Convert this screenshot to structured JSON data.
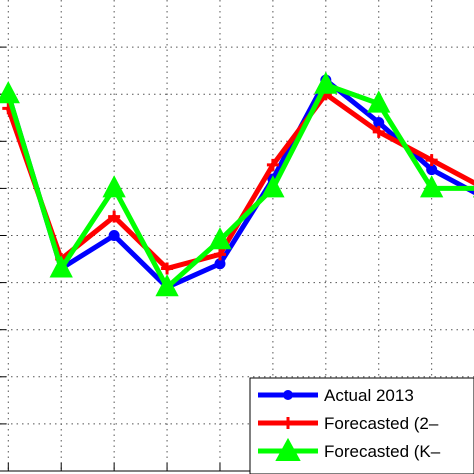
{
  "chart_data": {
    "type": "line",
    "x": [
      1,
      2,
      3,
      4,
      5,
      6,
      7,
      8,
      9,
      10
    ],
    "xlim": [
      0.9,
      9.8
    ],
    "ylim": [
      0,
      10
    ],
    "grid": true,
    "legend_position": "bottom-right",
    "series": [
      {
        "name": "Actual 2013",
        "color": "#0000ff",
        "marker": "circle",
        "values": [
          8.0,
          4.3,
          5.0,
          3.9,
          4.4,
          6.2,
          8.3,
          7.4,
          6.4,
          5.8
        ]
      },
      {
        "name": "Forecasted (2–",
        "color": "#ff0000",
        "marker": "plus",
        "values": [
          7.7,
          4.5,
          5.4,
          4.3,
          4.6,
          6.5,
          8.0,
          7.2,
          6.6,
          6.0
        ]
      },
      {
        "name": "Forecasted (K–",
        "color": "#00ff00",
        "marker": "triangle",
        "values": [
          8.0,
          4.3,
          6.0,
          3.9,
          4.9,
          6.0,
          8.2,
          7.8,
          6.0,
          6.0
        ]
      }
    ]
  }
}
